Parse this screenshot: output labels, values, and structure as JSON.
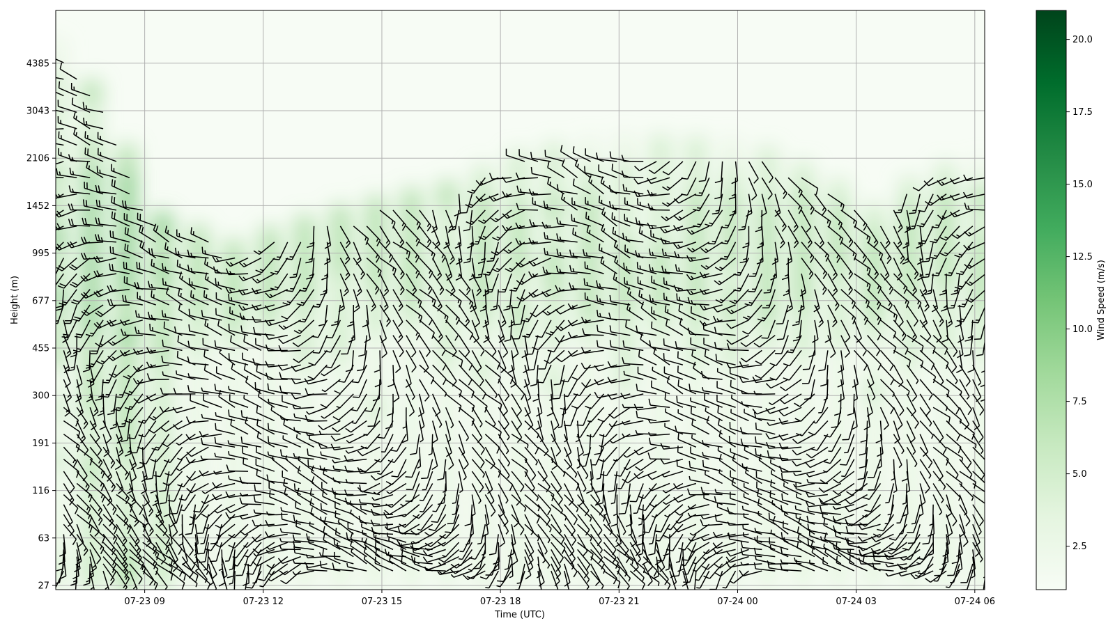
{
  "chart_data": {
    "type": "heatmap",
    "subtype": "wind-barb time-height plot",
    "title": "",
    "xlabel": "Time (UTC)",
    "ylabel": "Height (m)",
    "x_ticks": [
      "07-23 09",
      "07-23 12",
      "07-23 15",
      "07-23 18",
      "07-23 21",
      "07-24 00",
      "07-24 03",
      "07-24 06"
    ],
    "x_range": [
      "07-23 06:45",
      "07-24 06:15"
    ],
    "y_ticks": [
      "27",
      "63",
      "116",
      "191",
      "300",
      "455",
      "677",
      "995",
      "1452",
      "2106",
      "3043",
      "4385"
    ],
    "y_tick_values": [
      27,
      63,
      116,
      191,
      300,
      455,
      677,
      995,
      1452,
      2106,
      3043,
      4385
    ],
    "grid": true,
    "colormap": "Greens",
    "colorbar": {
      "label": "Wind Speed (m/s)",
      "range": [
        1,
        21
      ],
      "ticks": [
        "2.5",
        "5.0",
        "7.5",
        "10.0",
        "12.5",
        "15.0",
        "17.5",
        "20.0"
      ],
      "tick_values": [
        2.5,
        5.0,
        7.5,
        10.0,
        12.5,
        15.0,
        17.5,
        20.0
      ]
    },
    "colors": {
      "low": "#f7fcf5",
      "mid": "#74c476",
      "high": "#00441b",
      "barb": "#000000",
      "grid": "#b0b0b0"
    },
    "barb_region": {
      "time_range_hours": [
        0.2,
        23.6
      ],
      "height_top_profile": [
        {
          "t": 0.0,
          "top_m": 4800
        },
        {
          "t": 1.5,
          "top_m": 2600
        },
        {
          "t": 2.3,
          "top_m": 1300
        },
        {
          "t": 4.5,
          "top_m": 1000
        },
        {
          "t": 7.0,
          "top_m": 1300
        },
        {
          "t": 10.0,
          "top_m": 1600
        },
        {
          "t": 12.0,
          "top_m": 2100
        },
        {
          "t": 14.5,
          "top_m": 2300
        },
        {
          "t": 17.5,
          "top_m": 2200
        },
        {
          "t": 19.5,
          "top_m": 1700
        },
        {
          "t": 20.8,
          "top_m": 1300
        },
        {
          "t": 22.0,
          "top_m": 1800
        },
        {
          "t": 23.6,
          "top_m": 1900
        }
      ]
    }
  }
}
